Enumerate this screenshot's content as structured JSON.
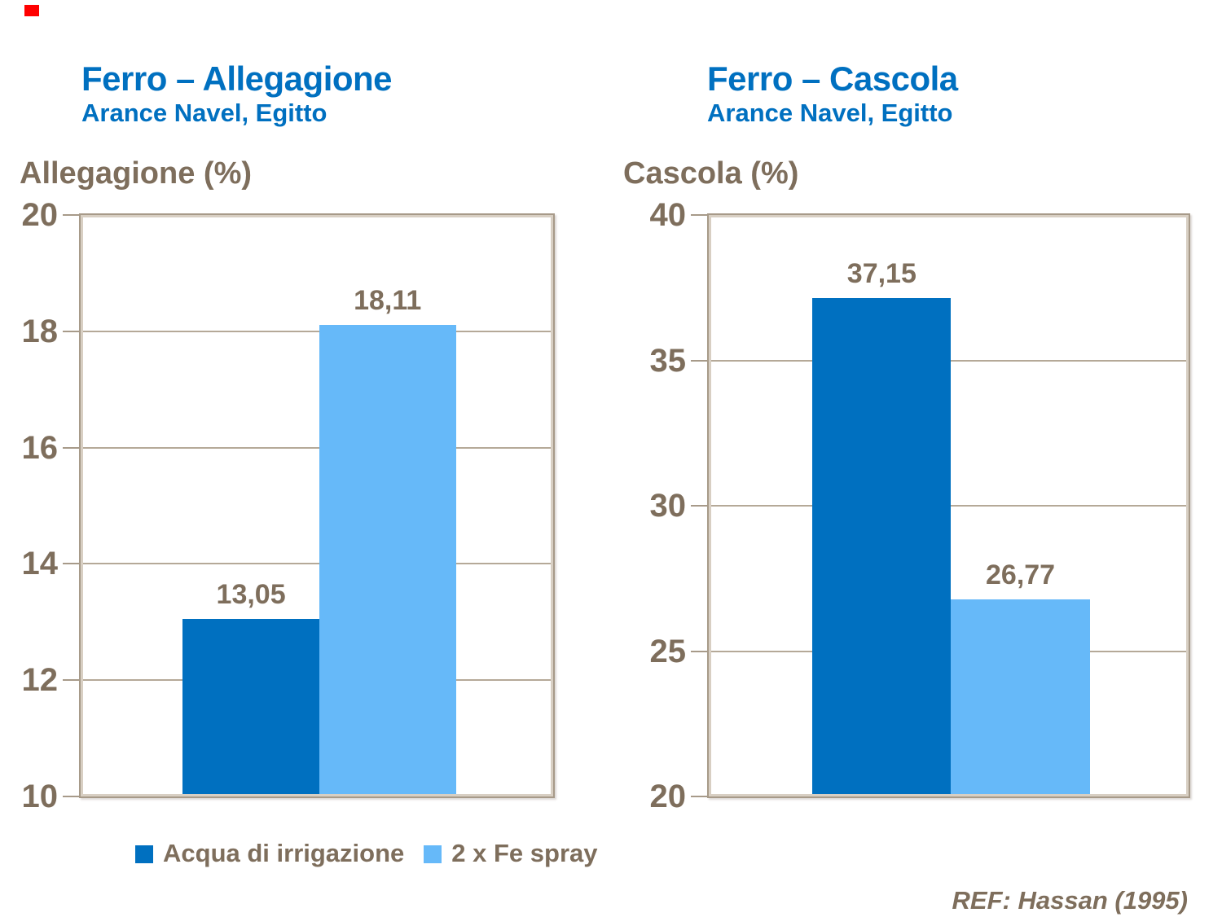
{
  "slide": {
    "ref": "REF: Hassan (1995)",
    "marker_color": "#FF0000"
  },
  "colors": {
    "title_blue": "#0070C0",
    "series1": "#0070C0",
    "series2": "#66B9F9",
    "text_taupe": "#7E6E5C",
    "border_taupe": "#A79A89",
    "border_light": "#D8CFC3",
    "gridline": "#B5A998"
  },
  "legend": {
    "items": [
      {
        "label": "Acqua di irrigazione",
        "color": "#0070C0"
      },
      {
        "label": "2 x Fe spray",
        "color": "#66B9F9"
      }
    ]
  },
  "chart_data": [
    {
      "type": "bar",
      "title": "Ferro – Allegagione",
      "subtitle": "Arance Navel, Egitto",
      "ylabel": "Allegagione (%)",
      "xlabel": "",
      "categories": [
        "Acqua di irrigazione",
        "2 x Fe spray"
      ],
      "values": [
        13.05,
        18.11
      ],
      "value_labels": [
        "13,05",
        "18,11"
      ],
      "ylim": [
        10,
        20
      ],
      "yticks": [
        10,
        12,
        14,
        16,
        18,
        20
      ],
      "grid": true,
      "legend_position": "bottom"
    },
    {
      "type": "bar",
      "title": "Ferro – Cascola",
      "subtitle": "Arance Navel, Egitto",
      "ylabel": "Cascola (%)",
      "xlabel": "",
      "categories": [
        "Acqua di irrigazione",
        "2 x Fe spray"
      ],
      "values": [
        37.15,
        26.77
      ],
      "value_labels": [
        "37,15",
        "26,77"
      ],
      "ylim": [
        20,
        40
      ],
      "yticks": [
        20,
        25,
        30,
        35,
        40
      ],
      "grid": true,
      "legend_position": "none"
    }
  ]
}
